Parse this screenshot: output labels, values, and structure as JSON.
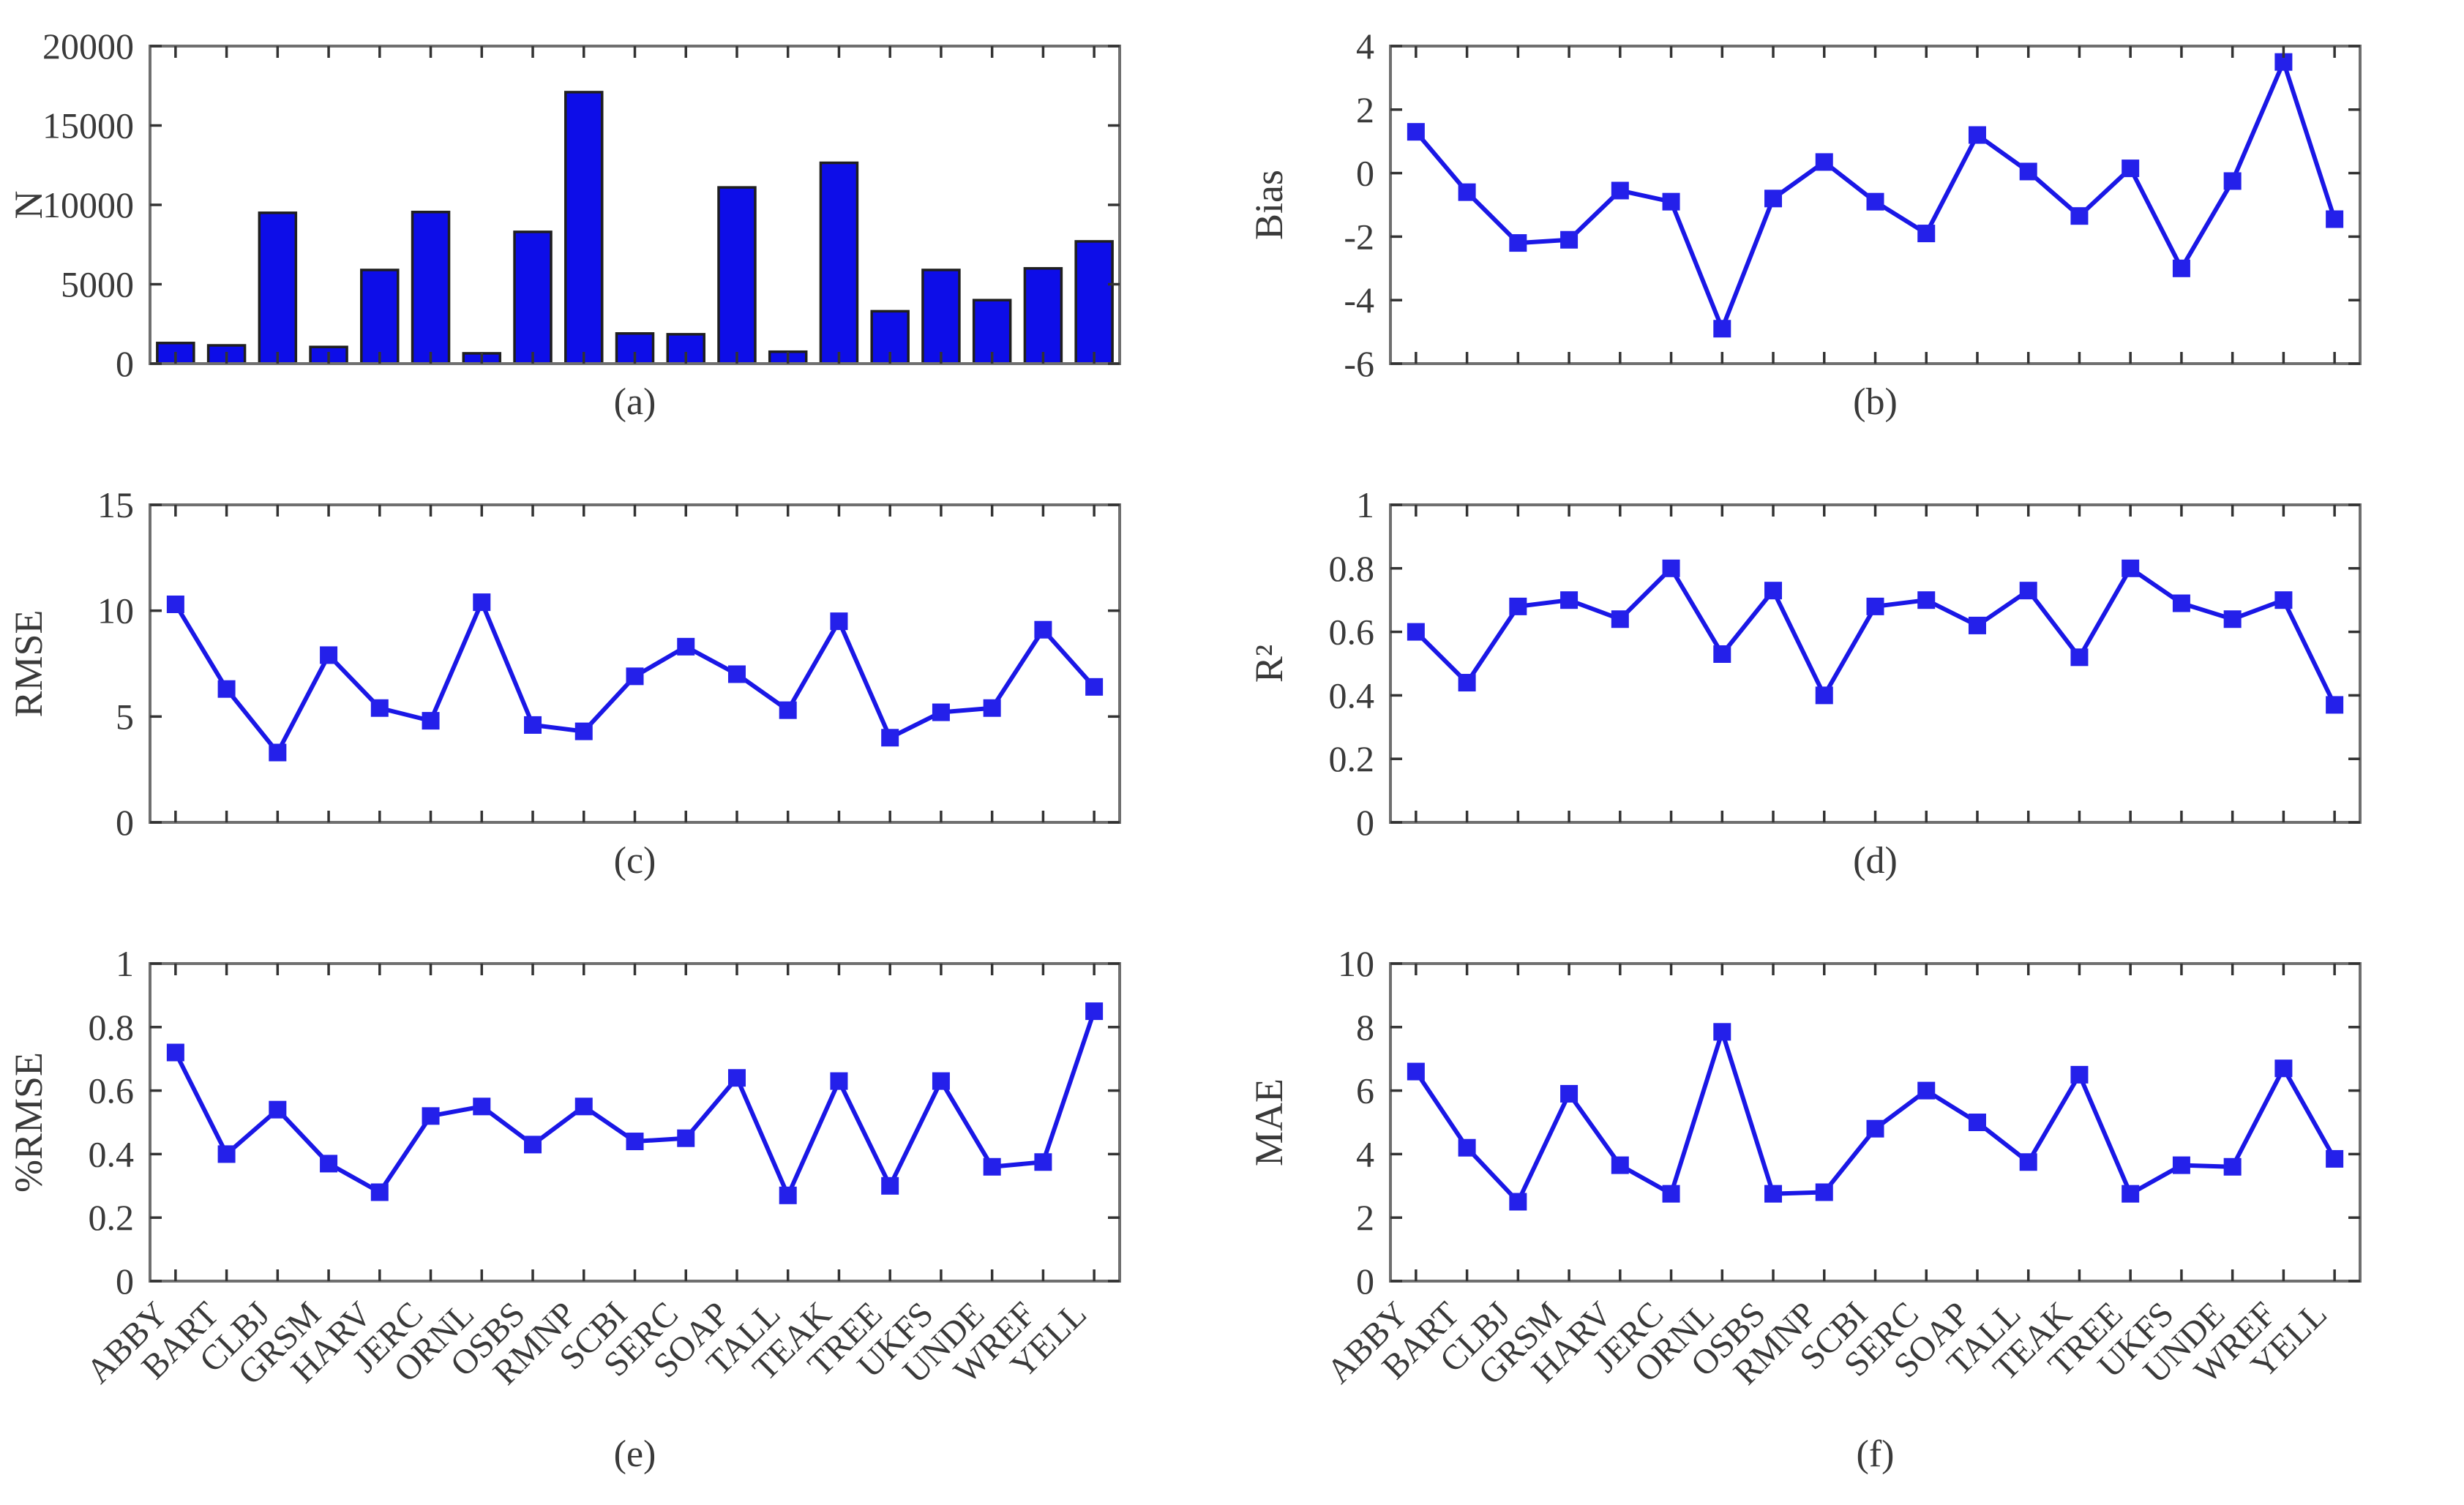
{
  "chart_data": {
    "type": "multi-panel",
    "categories": [
      "ABBY",
      "BART",
      "CLBJ",
      "GRSM",
      "HARV",
      "JERC",
      "ORNL",
      "OSBS",
      "RMNP",
      "SCBI",
      "SERC",
      "SOAP",
      "TALL",
      "TEAK",
      "TREE",
      "UKFS",
      "UNDE",
      "WREF",
      "YELL"
    ],
    "colors": {
      "line": "#1a17e6",
      "marker": "#2420ea",
      "bar_fill": "#0d0de8",
      "bar_edge": "#1f1f1f",
      "spine": "#6f6f6f",
      "tick": "#333333",
      "text": "#3a3a3a"
    },
    "panels": [
      {
        "label": "(a)",
        "type": "bar",
        "ylabel": "N",
        "ylim": [
          0,
          20000
        ],
        "yticks": [
          0,
          5000,
          10000,
          15000,
          20000
        ],
        "values": [
          1300,
          1150,
          9500,
          1050,
          5900,
          9550,
          650,
          8300,
          17100,
          1900,
          1850,
          11100,
          750,
          12650,
          3300,
          5900,
          4000,
          6000,
          7700
        ],
        "show_xticklabels": false
      },
      {
        "label": "(b)",
        "type": "line",
        "ylabel": "Bias",
        "ylim": [
          -6,
          4
        ],
        "yticks": [
          -6,
          -4,
          -2,
          0,
          2,
          4
        ],
        "values": [
          1.3,
          -0.6,
          -2.2,
          -2.1,
          -0.55,
          -0.9,
          -4.9,
          -0.8,
          0.35,
          -0.9,
          -1.9,
          1.2,
          0.05,
          -1.35,
          0.15,
          -3.0,
          -0.25,
          3.5,
          -1.45
        ],
        "show_xticklabels": false
      },
      {
        "label": "(c)",
        "type": "line",
        "ylabel": "RMSE",
        "ylim": [
          0,
          15
        ],
        "yticks": [
          0,
          5,
          10,
          15
        ],
        "values": [
          10.3,
          6.3,
          3.3,
          7.9,
          5.4,
          4.8,
          10.4,
          4.6,
          4.3,
          6.9,
          8.3,
          7.0,
          5.3,
          9.5,
          4.0,
          5.2,
          5.4,
          9.1,
          6.4
        ],
        "show_xticklabels": false
      },
      {
        "label": "(d)",
        "type": "line",
        "ylabel": "R²",
        "ylim": [
          0,
          1
        ],
        "yticks": [
          0,
          0.2,
          0.4,
          0.6,
          0.8,
          1
        ],
        "values": [
          0.6,
          0.44,
          0.68,
          0.7,
          0.64,
          0.8,
          0.53,
          0.73,
          0.4,
          0.68,
          0.7,
          0.62,
          0.73,
          0.52,
          0.8,
          0.69,
          0.64,
          0.7,
          0.37
        ],
        "show_xticklabels": false
      },
      {
        "label": "(e)",
        "type": "line",
        "ylabel": "%RMSE",
        "ylim": [
          0,
          1
        ],
        "yticks": [
          0,
          0.2,
          0.4,
          0.6,
          0.8,
          1
        ],
        "values": [
          0.72,
          0.4,
          0.54,
          0.37,
          0.28,
          0.52,
          0.55,
          0.43,
          0.55,
          0.44,
          0.45,
          0.64,
          0.27,
          0.63,
          0.3,
          0.63,
          0.36,
          0.375,
          0.85
        ],
        "show_xticklabels": true
      },
      {
        "label": "(f)",
        "type": "line",
        "ylabel": "MAE",
        "ylim": [
          0,
          10
        ],
        "yticks": [
          0,
          2,
          4,
          6,
          8,
          10
        ],
        "values": [
          6.6,
          4.2,
          2.5,
          5.9,
          3.65,
          2.75,
          7.85,
          2.75,
          2.8,
          4.8,
          6.0,
          5.0,
          3.75,
          6.5,
          2.75,
          3.65,
          3.6,
          6.7,
          3.85
        ],
        "show_xticklabels": true
      }
    ]
  }
}
